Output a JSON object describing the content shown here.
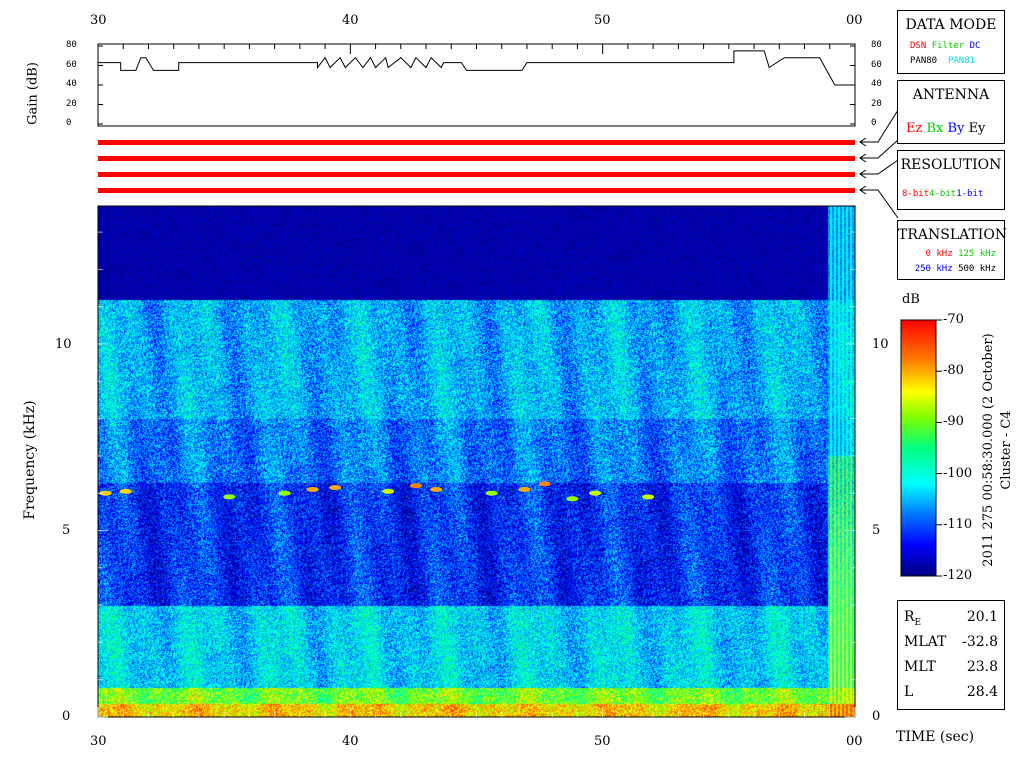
{
  "colors": {
    "red": "#ff0000",
    "green": "#00cc00",
    "blue": "#0000ff",
    "cyan": "#00e0e0",
    "spec_dark": "#0a1e5a"
  },
  "data_mode": {
    "title": "DATA MODE",
    "items": [
      "DSN",
      "Filter",
      "DC",
      "PAN80",
      "PAN81"
    ]
  },
  "antenna": {
    "title": "ANTENNA",
    "items": [
      "Ez",
      "Bx",
      "By",
      "Ey"
    ]
  },
  "resolution": {
    "title": "RESOLUTION",
    "items": [
      "8-bit",
      "4-bit",
      "1-bit"
    ]
  },
  "translation": {
    "title": "TRANSLATION",
    "items": [
      "0 kHz",
      "125 kHz",
      "250 kHz",
      "500 kHz"
    ]
  },
  "colorbar": {
    "unit": "dB",
    "ticks": [
      "-70",
      "-80",
      "-90",
      "-100",
      "-110",
      "-120"
    ]
  },
  "side_caption": {
    "date": "2011 275 00:58:30.000 (2 October)",
    "spacecraft": "Cluster - C4"
  },
  "position": [
    {
      "label": "R",
      "sub": "E",
      "value": "20.1"
    },
    {
      "label": "MLAT",
      "sub": "",
      "value": "-32.8"
    },
    {
      "label": "MLT",
      "sub": "",
      "value": "23.8"
    },
    {
      "label": "L",
      "sub": "",
      "value": "28.4"
    }
  ],
  "time_axis": {
    "label": "TIME (sec)",
    "ticks": [
      "30",
      "40",
      "50",
      "00"
    ]
  },
  "chart_data": [
    {
      "type": "line",
      "title": "",
      "ylabel": "Gain (dB)",
      "ylim": [
        0,
        80
      ],
      "yticks": [
        "80",
        "60",
        "40",
        "20",
        "0"
      ],
      "xlim": [
        30,
        60
      ],
      "xticks": [
        "30",
        "40",
        "50",
        "00"
      ],
      "series": [
        {
          "x": [
            30,
            30.9,
            30.9,
            31.5,
            31.7,
            31.9,
            32.2,
            33.2,
            33.2,
            38.7,
            38.7,
            39.0,
            39.2,
            39.6,
            39.8,
            40.2,
            40.5,
            40.8,
            41.0,
            41.4,
            41.5,
            42.0,
            42.4,
            42.6,
            43.0,
            43.2,
            43.6,
            43.7,
            44.4,
            44.6,
            46.8,
            47.0,
            47.5,
            47.7,
            55.2,
            55.2,
            56.4,
            56.6,
            57.2,
            57.4,
            58.6,
            58.6,
            59.2,
            59.4,
            60
          ],
          "y": [
            63,
            63,
            55,
            55,
            68,
            68,
            55,
            55,
            63,
            63,
            58,
            68,
            58,
            68,
            58,
            68,
            58,
            68,
            58,
            68,
            58,
            68,
            58,
            68,
            58,
            68,
            58,
            63,
            63,
            55,
            55,
            63,
            63,
            63,
            63,
            75,
            75,
            58,
            68,
            68,
            68,
            68,
            40,
            40,
            40
          ]
        }
      ]
    },
    {
      "type": "heatmap",
      "title": "",
      "xlabel": "TIME (sec)",
      "ylabel": "Frequency (kHz)",
      "xlim": [
        30,
        60
      ],
      "xticks": [
        "30",
        "40",
        "50",
        "00"
      ],
      "ylim": [
        0,
        13.7
      ],
      "yticks": [
        "0",
        "5",
        "10"
      ],
      "zlim": [
        -120,
        -70
      ],
      "zunit": "dB",
      "layers": [
        {
          "fmin": 0,
          "fmax": 0.8,
          "level": -90
        },
        {
          "fmin": 0.8,
          "fmax": 3.0,
          "level": -103
        },
        {
          "fmin": 3.0,
          "fmax": 6.3,
          "level": -112
        },
        {
          "fmin": 6.3,
          "fmax": 8.0,
          "level": -108
        },
        {
          "fmin": 8.0,
          "fmax": 11.2,
          "level": -105
        },
        {
          "fmin": 11.2,
          "fmax": 13.7,
          "level": -120
        }
      ],
      "tone_bursts": [
        {
          "t": 30.3,
          "f": 6.0,
          "level": -82
        },
        {
          "t": 31.1,
          "f": 6.05,
          "level": -82
        },
        {
          "t": 35.2,
          "f": 5.9,
          "level": -88
        },
        {
          "t": 37.4,
          "f": 6.0,
          "level": -88
        },
        {
          "t": 38.5,
          "f": 6.1,
          "level": -80
        },
        {
          "t": 39.4,
          "f": 6.15,
          "level": -80
        },
        {
          "t": 41.5,
          "f": 6.05,
          "level": -86
        },
        {
          "t": 42.6,
          "f": 6.2,
          "level": -78
        },
        {
          "t": 43.4,
          "f": 6.1,
          "level": -80
        },
        {
          "t": 45.6,
          "f": 6.0,
          "level": -88
        },
        {
          "t": 46.9,
          "f": 6.1,
          "level": -80
        },
        {
          "t": 47.7,
          "f": 6.25,
          "level": -78
        },
        {
          "t": 48.8,
          "f": 5.85,
          "level": -88
        },
        {
          "t": 49.7,
          "f": 6.0,
          "level": -86
        },
        {
          "t": 51.8,
          "f": 5.9,
          "level": -86
        }
      ]
    }
  ]
}
